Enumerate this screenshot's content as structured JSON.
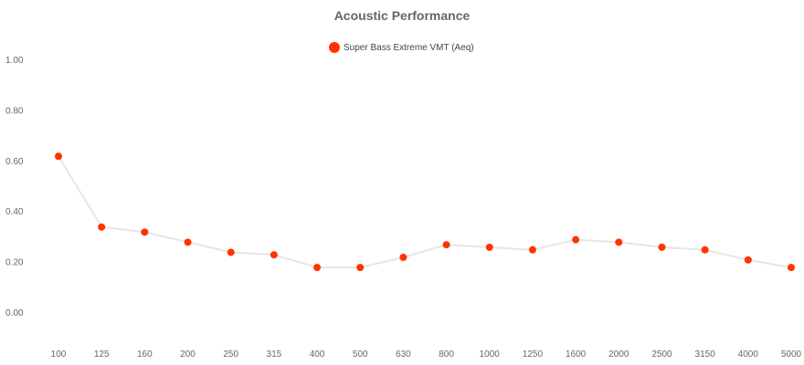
{
  "chart_data": {
    "type": "line",
    "title": "Acoustic Performance",
    "categories": [
      "100",
      "125",
      "160",
      "200",
      "250",
      "315",
      "400",
      "500",
      "630",
      "800",
      "1000",
      "1250",
      "1600",
      "2000",
      "2500",
      "3150",
      "4000",
      "5000"
    ],
    "series": [
      {
        "name": "Super Bass Extreme VMT (Aeq)",
        "values": [
          0.62,
          0.34,
          0.32,
          0.28,
          0.24,
          0.23,
          0.18,
          0.18,
          0.22,
          0.27,
          0.26,
          0.25,
          0.29,
          0.28,
          0.26,
          0.25,
          0.21,
          0.18
        ],
        "color": "#ff3300",
        "line_color": "#e6e6e6"
      }
    ],
    "y_ticks": [
      "0.00",
      "0.20",
      "0.40",
      "0.60",
      "0.80",
      "1.00"
    ],
    "ylim": [
      -0.1,
      1.1
    ],
    "grid": false,
    "legend_position": "top-center"
  }
}
